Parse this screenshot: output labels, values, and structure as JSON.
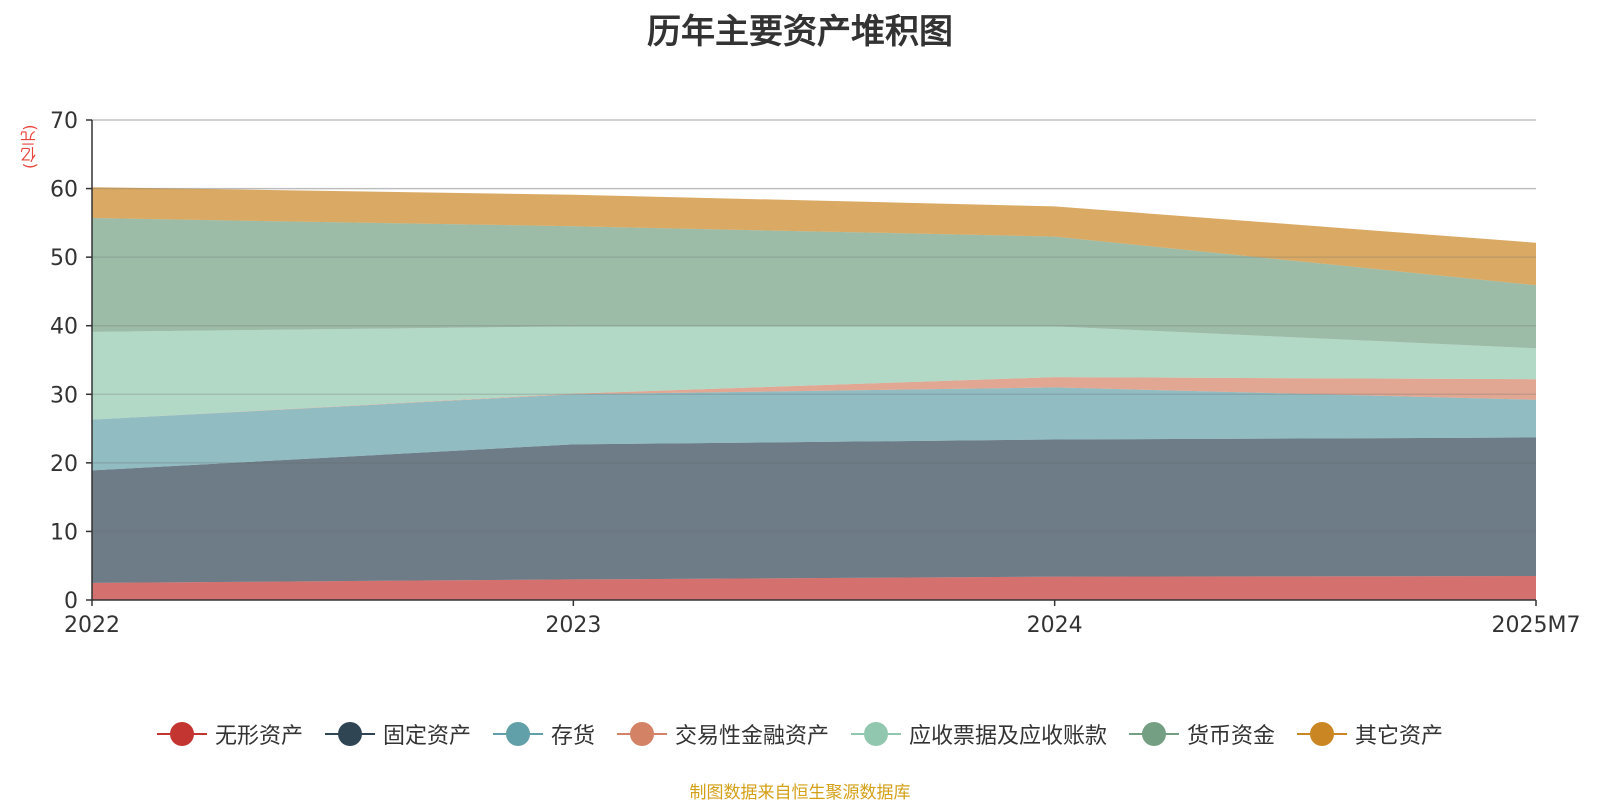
{
  "chart_data": {
    "type": "area",
    "stacked": true,
    "title": "历年主要资产堆积图",
    "unit_label": "(亿元)",
    "x": [
      "2022",
      "2023",
      "2024",
      "2025M7"
    ],
    "ylim": [
      0,
      70
    ],
    "yticks": [
      0,
      10,
      20,
      30,
      40,
      50,
      60,
      70
    ],
    "grid": true,
    "legend_position": "bottom",
    "series": [
      {
        "name": "无形资产",
        "color": "#c23531",
        "values": [
          2.5,
          3.0,
          3.4,
          3.5
        ]
      },
      {
        "name": "固定资产",
        "color": "#2f4554",
        "values": [
          16.4,
          19.7,
          20.0,
          20.2
        ]
      },
      {
        "name": "存货",
        "color": "#61a0a8",
        "values": [
          7.4,
          7.3,
          7.6,
          5.5
        ]
      },
      {
        "name": "交易性金融资产",
        "color": "#d48265",
        "values": [
          0.0,
          0.1,
          1.5,
          3.0
        ]
      },
      {
        "name": "应收票据及应收账款",
        "color": "#91c7ae",
        "values": [
          12.8,
          9.8,
          7.4,
          4.5
        ]
      },
      {
        "name": "货币资金",
        "color": "#749f83",
        "values": [
          16.6,
          14.6,
          13.1,
          9.2
        ]
      },
      {
        "name": "其它资产",
        "color": "#ca8622",
        "values": [
          4.5,
          4.6,
          4.4,
          6.2
        ]
      }
    ]
  },
  "source_text": "制图数据来自恒生聚源数据库"
}
